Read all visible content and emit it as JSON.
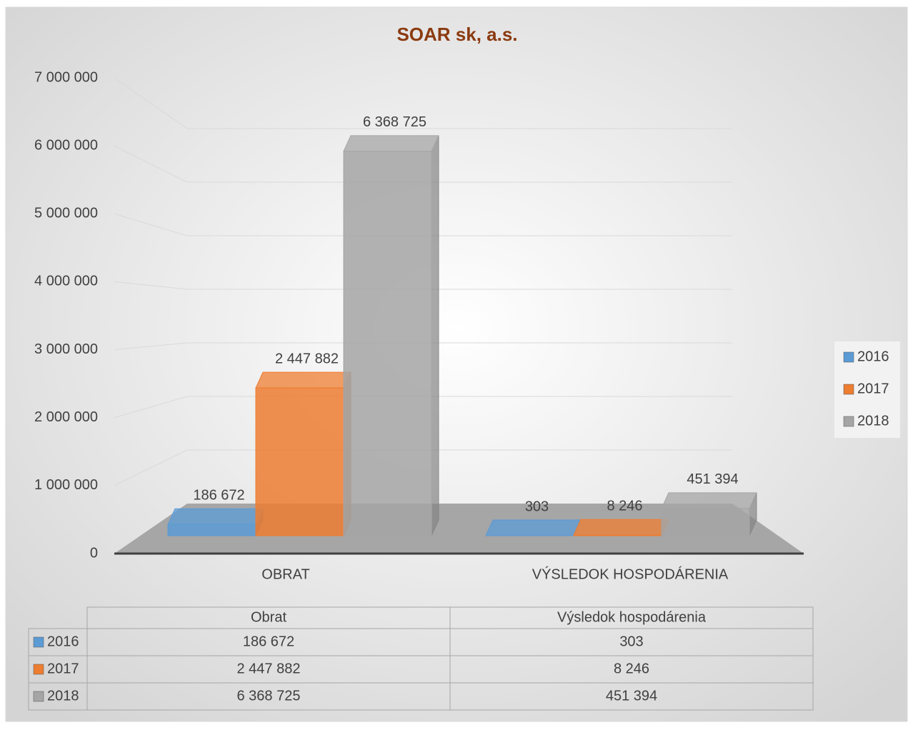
{
  "chart_data": {
    "type": "bar3d",
    "title": "SOAR sk, a.s.",
    "categories": [
      "OBRAT",
      "VÝSLEDOK HOSPODÁRENIA"
    ],
    "series": [
      {
        "name": "2016",
        "color": "#5b9bd5",
        "values": [
          186672,
          303
        ],
        "value_labels": [
          "186 672",
          "303"
        ]
      },
      {
        "name": "2017",
        "color": "#ed7d31",
        "values": [
          2447882,
          8246
        ],
        "value_labels": [
          "2 447 882",
          "8 246"
        ]
      },
      {
        "name": "2018",
        "color": "#a5a5a5",
        "values": [
          6368725,
          451394
        ],
        "value_labels": [
          "6 368 725",
          "451 394"
        ]
      }
    ],
    "ylim": [
      0,
      7000000
    ],
    "yticks": [
      0,
      {
        "value": 1000000,
        "label": "1 000 000"
      },
      {
        "value": 2000000,
        "label": "2 000 000"
      },
      {
        "value": 3000000,
        "label": "3 000 000"
      },
      {
        "value": 4000000,
        "label": "4 000 000"
      },
      {
        "value": 5000000,
        "label": "5 000 000"
      },
      {
        "value": 6000000,
        "label": "6 000 000"
      },
      {
        "value": 7000000,
        "label": "7 000 000"
      }
    ],
    "grid": true,
    "legend": "right",
    "table_headers": [
      "Obrat",
      "Výsledok hospodárenia"
    ]
  }
}
